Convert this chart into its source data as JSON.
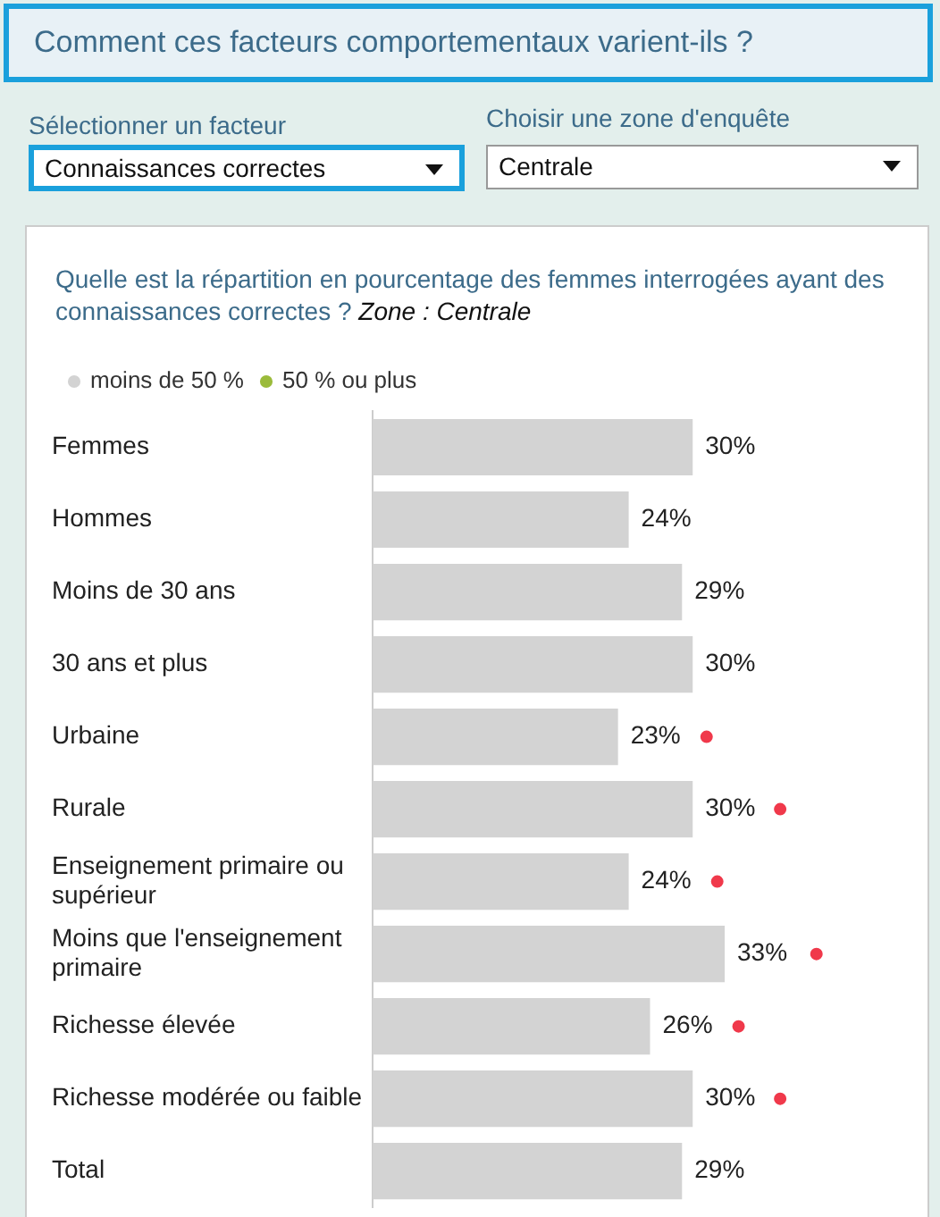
{
  "chart_data": {
    "type": "bar",
    "orientation": "horizontal",
    "title": "Quelle est la répartition en pourcentage des femmes interrogées ayant des connaissances correctes ?",
    "subtitle": "Zone : Centrale",
    "categories": [
      "Femmes",
      "Hommes",
      "Moins de 30 ans",
      "30 ans et plus",
      "Urbaine",
      "Rurale",
      "Enseignement primaire ou supérieur",
      "Moins que l'enseignement primaire",
      "Richesse élevée",
      "Richesse modérée ou faible",
      "Total"
    ],
    "series": [
      {
        "name": "moins de 50 %",
        "color": "#d3d3d3",
        "values": [
          30,
          24,
          29,
          30,
          23,
          30,
          24,
          33,
          26,
          30,
          29
        ],
        "value_labels": [
          "30%",
          "24%",
          "29%",
          "30%",
          "23%",
          "30%",
          "24%",
          "33%",
          "26%",
          "30%",
          "29%"
        ]
      },
      {
        "name": "50 % ou plus",
        "color": "#9bbb3b",
        "values": [
          null,
          null,
          null,
          null,
          null,
          null,
          null,
          null,
          null,
          null,
          null
        ]
      },
      {
        "type": "scatter",
        "color": "#f0394b",
        "values": [
          null,
          null,
          null,
          null,
          31.3,
          38.2,
          32.3,
          41.6,
          34.3,
          38.2,
          null
        ]
      }
    ],
    "tick_labels": "y",
    "grid": false,
    "legend": "top left",
    "marker": "circle",
    "annotations": [
      "Comment ces facteurs comportementaux varient-ils ?",
      "Sélectionner un facteur",
      "Connaissances correctes",
      "Choisir une zone d'enquête",
      "Centrale"
    ]
  }
}
